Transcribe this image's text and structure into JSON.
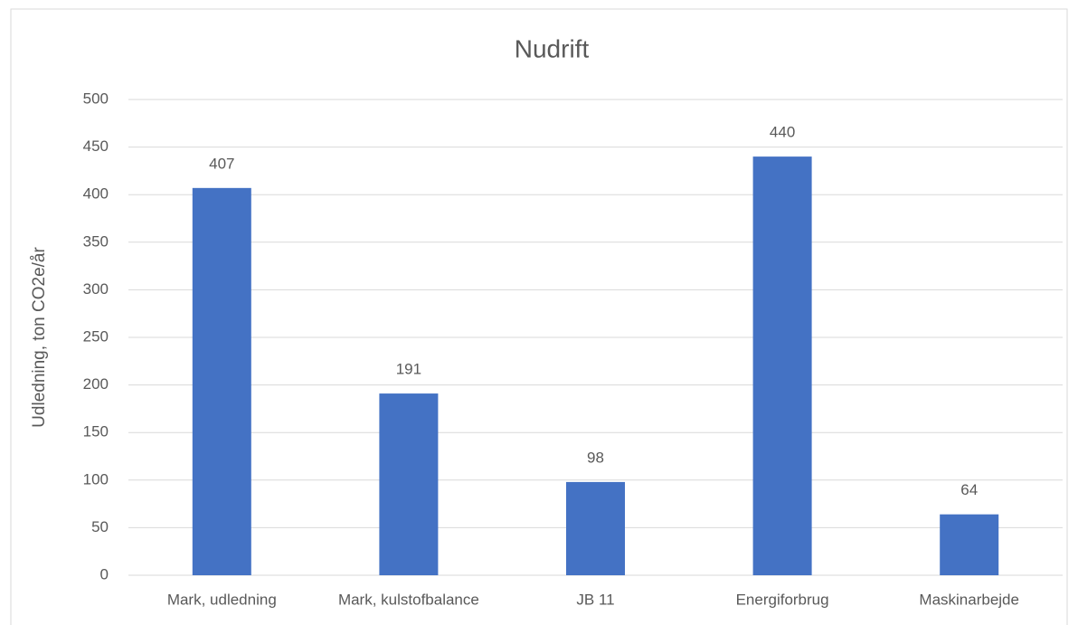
{
  "chart_data": {
    "type": "bar",
    "title": "Nudrift",
    "y_label": "Udledning, ton CO2e/år",
    "categories": [
      "Mark, udledning",
      "Mark, kulstofbalance",
      "JB 11",
      "Energiforbrug",
      "Maskinarbejde"
    ],
    "values": [
      407,
      191,
      98,
      440,
      64
    ],
    "color": "#4472c4",
    "ylim": [
      0,
      500
    ],
    "yticks": [
      0,
      50,
      100,
      150,
      200,
      250,
      300,
      350,
      400,
      450,
      500
    ],
    "grid": true
  }
}
